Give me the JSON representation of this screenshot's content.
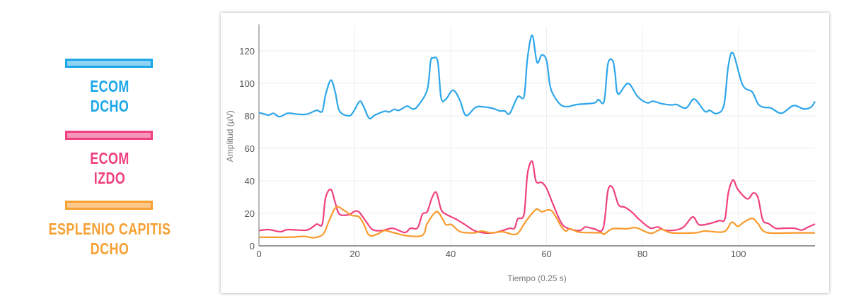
{
  "legend": [
    {
      "line1": "ECOM",
      "line2": "DCHO",
      "color": "#1aa7e8",
      "fill": "#8fd3f4"
    },
    {
      "line1": "ECOM",
      "line2": "IZDO",
      "color": "#f0407f",
      "fill": "#f595b8"
    },
    {
      "line1": "ESPLENIO CAPITIS",
      "line2": "DCHO",
      "color": "#f7a033",
      "fill": "#fbc98a"
    }
  ],
  "chart_data": {
    "type": "line",
    "xlabel": "Tiempo (0.25 s)",
    "ylabel": "Amplitud (µV)",
    "xlim": [
      0,
      116
    ],
    "ylim": [
      0,
      135
    ],
    "xticks": [
      0,
      20,
      40,
      60,
      80,
      100
    ],
    "yticks": [
      0,
      20,
      40,
      60,
      80,
      100,
      120
    ],
    "grid": true,
    "series": [
      {
        "name": "ECOM DCHO",
        "color": "#2ea6ea",
        "points": [
          [
            0,
            82
          ],
          [
            2,
            80.5
          ],
          [
            3,
            81.6
          ],
          [
            4.3,
            79.5
          ],
          [
            6,
            81.6
          ],
          [
            8,
            81
          ],
          [
            10,
            81
          ],
          [
            12,
            83.4
          ],
          [
            13.2,
            82.8
          ],
          [
            13.9,
            93
          ],
          [
            15,
            102
          ],
          [
            15.9,
            94.7
          ],
          [
            16.8,
            83
          ],
          [
            18.8,
            80
          ],
          [
            19.8,
            83
          ],
          [
            21,
            89
          ],
          [
            21.8,
            86
          ],
          [
            23,
            78.5
          ],
          [
            24.2,
            80.5
          ],
          [
            26.2,
            82.8
          ],
          [
            27.2,
            82.4
          ],
          [
            28.2,
            84
          ],
          [
            29.2,
            83.4
          ],
          [
            30.9,
            86
          ],
          [
            32.1,
            84.2
          ],
          [
            33.1,
            86
          ],
          [
            35.1,
            96
          ],
          [
            35.8,
            113.4
          ],
          [
            36.3,
            115.6
          ],
          [
            37.3,
            113.4
          ],
          [
            38,
            91
          ],
          [
            39,
            90.3
          ],
          [
            40.2,
            95.4
          ],
          [
            41,
            94.7
          ],
          [
            42,
            89
          ],
          [
            43.2,
            80.2
          ],
          [
            45.2,
            85.3
          ],
          [
            46.9,
            85.5
          ],
          [
            48.9,
            84.5
          ],
          [
            50.3,
            83
          ],
          [
            51.3,
            83
          ],
          [
            52.3,
            81.4
          ],
          [
            54,
            91.8
          ],
          [
            55.3,
            92
          ],
          [
            56,
            115
          ],
          [
            57,
            129.6
          ],
          [
            58,
            113
          ],
          [
            59,
            117.5
          ],
          [
            60,
            114
          ],
          [
            60.7,
            99
          ],
          [
            61.5,
            92.5
          ],
          [
            63,
            86.7
          ],
          [
            64.4,
            85.7
          ],
          [
            66.4,
            87
          ],
          [
            69.9,
            87.9
          ],
          [
            70.8,
            90
          ],
          [
            72,
            89
          ],
          [
            72.8,
            112
          ],
          [
            73.8,
            114
          ],
          [
            74.3,
            106
          ],
          [
            74.9,
            93.5
          ],
          [
            77,
            100
          ],
          [
            79,
            91.8
          ],
          [
            81,
            88
          ],
          [
            82.2,
            89
          ],
          [
            84.1,
            87.4
          ],
          [
            86.1,
            86.7
          ],
          [
            87.1,
            87
          ],
          [
            89.1,
            84.8
          ],
          [
            90.8,
            90.3
          ],
          [
            93,
            82.8
          ],
          [
            94,
            83.4
          ],
          [
            95.5,
            81.4
          ],
          [
            97,
            86.7
          ],
          [
            97.9,
            110.5
          ],
          [
            98.9,
            118.5
          ],
          [
            100.9,
            99
          ],
          [
            102.9,
            94.7
          ],
          [
            104.1,
            87.4
          ],
          [
            105.3,
            85.3
          ],
          [
            106.8,
            84.8
          ],
          [
            109,
            81.6
          ],
          [
            111.5,
            86.3
          ],
          [
            113.7,
            84.2
          ],
          [
            115.2,
            85.5
          ],
          [
            116,
            88.9
          ]
        ]
      },
      {
        "name": "ECOM IZDO",
        "color": "#f0407f",
        "points": [
          [
            0,
            9.4
          ],
          [
            2,
            10
          ],
          [
            4.5,
            8.7
          ],
          [
            6,
            10
          ],
          [
            10,
            9.7
          ],
          [
            12,
            13.3
          ],
          [
            13.2,
            13.3
          ],
          [
            13.9,
            29.6
          ],
          [
            15,
            34.7
          ],
          [
            15.9,
            26.7
          ],
          [
            16.8,
            19.5
          ],
          [
            18.8,
            19.2
          ],
          [
            19.8,
            21
          ],
          [
            20.8,
            21
          ],
          [
            22.3,
            15.2
          ],
          [
            23.7,
            10
          ],
          [
            25.7,
            9.4
          ],
          [
            27.9,
            10.8
          ],
          [
            30.4,
            8.2
          ],
          [
            31.6,
            10.8
          ],
          [
            33.1,
            11.1
          ],
          [
            34.1,
            19.5
          ],
          [
            35.1,
            21
          ],
          [
            36.1,
            29.6
          ],
          [
            37,
            32.8
          ],
          [
            38,
            22.4
          ],
          [
            39,
            19.5
          ],
          [
            41,
            16.6
          ],
          [
            43,
            13
          ],
          [
            44.9,
            9.4
          ],
          [
            46.9,
            8
          ],
          [
            48.9,
            8
          ],
          [
            50.8,
            9.4
          ],
          [
            52.3,
            10.8
          ],
          [
            53.3,
            10.8
          ],
          [
            54,
            16.6
          ],
          [
            55.3,
            19.5
          ],
          [
            56,
            44
          ],
          [
            57,
            52
          ],
          [
            57.8,
            39.7
          ],
          [
            59,
            39
          ],
          [
            60,
            35.4
          ],
          [
            61.2,
            26.7
          ],
          [
            63,
            14.5
          ],
          [
            64.4,
            10.8
          ],
          [
            66.9,
            9.4
          ],
          [
            68.1,
            11.6
          ],
          [
            69.9,
            10.5
          ],
          [
            71.8,
            10.8
          ],
          [
            72.8,
            34
          ],
          [
            73.8,
            35.7
          ],
          [
            75,
            25.3
          ],
          [
            76.3,
            23.8
          ],
          [
            77.7,
            21
          ],
          [
            79.2,
            16.6
          ],
          [
            80.6,
            13
          ],
          [
            81.8,
            10.8
          ],
          [
            83.2,
            11.6
          ],
          [
            84.6,
            9.7
          ],
          [
            86.8,
            9.7
          ],
          [
            88.6,
            11.6
          ],
          [
            90.5,
            17.8
          ],
          [
            91.8,
            13
          ],
          [
            94,
            13.7
          ],
          [
            96,
            15.5
          ],
          [
            97.2,
            16.6
          ],
          [
            97.9,
            32.5
          ],
          [
            98.9,
            40.5
          ],
          [
            99.9,
            34.7
          ],
          [
            101.9,
            28.9
          ],
          [
            103.1,
            32.5
          ],
          [
            104.1,
            29.6
          ],
          [
            105.1,
            15.9
          ],
          [
            106.3,
            13.7
          ],
          [
            107.8,
            10.8
          ],
          [
            109.3,
            10.8
          ],
          [
            111.7,
            10.8
          ],
          [
            113.2,
            9.7
          ],
          [
            114.6,
            11.6
          ],
          [
            116,
            13.4
          ]
        ]
      },
      {
        "name": "ESPLENIO CAPITIS DCHO",
        "color": "#f89a2c",
        "points": [
          [
            0,
            5.3
          ],
          [
            6,
            5.3
          ],
          [
            9.5,
            5.8
          ],
          [
            11.4,
            5
          ],
          [
            13.4,
            7.2
          ],
          [
            14.6,
            15.2
          ],
          [
            16.1,
            23.8
          ],
          [
            17.8,
            21.7
          ],
          [
            19.3,
            18.8
          ],
          [
            20.8,
            18
          ],
          [
            21.8,
            13.7
          ],
          [
            23,
            6.5
          ],
          [
            24.7,
            7.2
          ],
          [
            26.2,
            9.4
          ],
          [
            28.2,
            8
          ],
          [
            30.9,
            6.2
          ],
          [
            34.1,
            6.5
          ],
          [
            35.1,
            13.7
          ],
          [
            37,
            21
          ],
          [
            38.3,
            16.6
          ],
          [
            39,
            13
          ],
          [
            40.2,
            13
          ],
          [
            42,
            8.7
          ],
          [
            44.9,
            8
          ],
          [
            46.4,
            9.1
          ],
          [
            48.4,
            8
          ],
          [
            50.8,
            8.7
          ],
          [
            53.7,
            7.2
          ],
          [
            55.7,
            15.2
          ],
          [
            57.8,
            22.4
          ],
          [
            59,
            21
          ],
          [
            61,
            21.7
          ],
          [
            63,
            12.3
          ],
          [
            64,
            9.1
          ],
          [
            64.9,
            10.5
          ],
          [
            66.9,
            8.4
          ],
          [
            71.3,
            8
          ],
          [
            72,
            7.2
          ],
          [
            73.8,
            10.5
          ],
          [
            76.7,
            10.5
          ],
          [
            78.7,
            11.1
          ],
          [
            81.7,
            7.7
          ],
          [
            83.9,
            10.1
          ],
          [
            86.1,
            8
          ],
          [
            91,
            8
          ],
          [
            93,
            9.1
          ],
          [
            97,
            8.7
          ],
          [
            98.6,
            14.5
          ],
          [
            99.9,
            12
          ],
          [
            101.1,
            14.5
          ],
          [
            102.9,
            16.9
          ],
          [
            104.1,
            13.7
          ],
          [
            105.9,
            8.2
          ],
          [
            111.7,
            8
          ],
          [
            116,
            8
          ]
        ]
      }
    ]
  }
}
